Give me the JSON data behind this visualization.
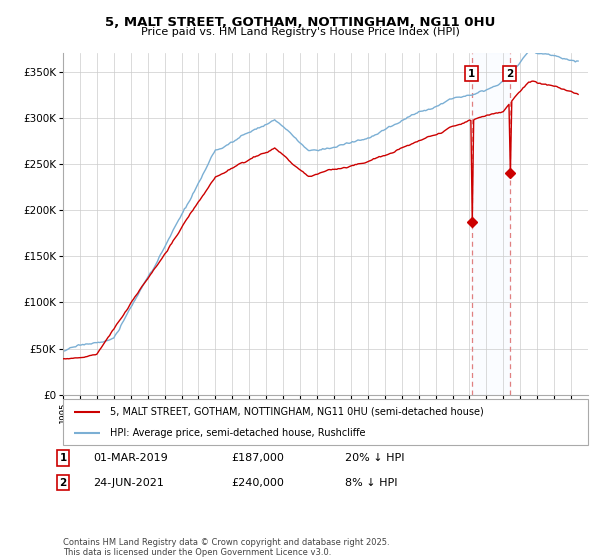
{
  "title": "5, MALT STREET, GOTHAM, NOTTINGHAM, NG11 0HU",
  "subtitle": "Price paid vs. HM Land Registry's House Price Index (HPI)",
  "ylim": [
    0,
    370000
  ],
  "yticks": [
    0,
    50000,
    100000,
    150000,
    200000,
    250000,
    300000,
    350000
  ],
  "hpi_color": "#7bafd4",
  "price_color": "#cc0000",
  "vline_color": "#e08080",
  "span_color": "#ddeeff",
  "marker1_price": 187000,
  "marker2_price": 240000,
  "legend_line1": "5, MALT STREET, GOTHAM, NOTTINGHAM, NG11 0HU (semi-detached house)",
  "legend_line2": "HPI: Average price, semi-detached house, Rushcliffe",
  "ann1_date": "01-MAR-2019",
  "ann1_price": "£187,000",
  "ann1_hpi": "20% ↓ HPI",
  "ann2_date": "24-JUN-2021",
  "ann2_price": "£240,000",
  "ann2_hpi": "8% ↓ HPI",
  "footer": "Contains HM Land Registry data © Crown copyright and database right 2025.\nThis data is licensed under the Open Government Licence v3.0.",
  "grid_color": "#cccccc",
  "background_color": "#ffffff"
}
